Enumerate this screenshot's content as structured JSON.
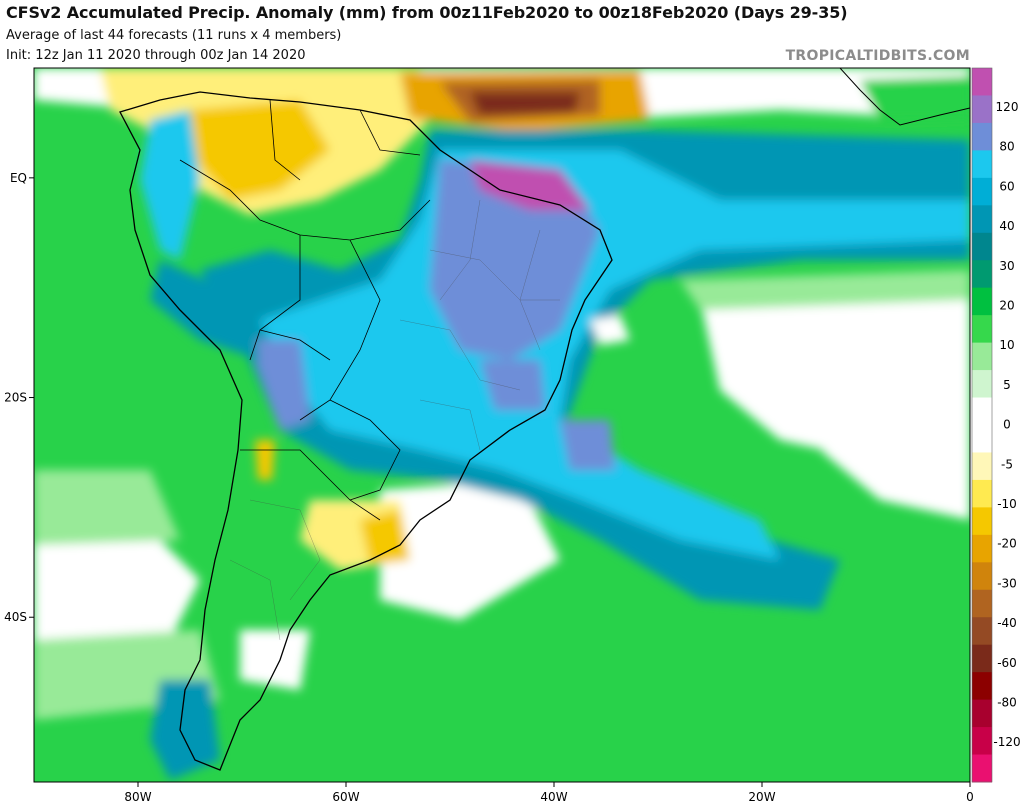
{
  "header": {
    "title": "CFSv2 Accumulated Precip. Anomaly (mm) from 00z11Feb2020 to 00z18Feb2020 (Days 29-35)",
    "subtitle": "Average of last 44 forecasts (11 runs x 4 members)",
    "init": "Init: 12z Jan 11 2020 through 00z Jan 14 2020",
    "brand": "TROPICALTIDBITS.COM"
  },
  "axes": {
    "lon_labels": [
      "80W",
      "60W",
      "40W",
      "20W",
      "0"
    ],
    "lon_values": [
      -80,
      -60,
      -40,
      -20,
      0
    ],
    "lat_labels": [
      "EQ",
      "20S",
      "40S"
    ],
    "lat_values": [
      0,
      -20,
      -40
    ],
    "lon_range": [
      -90,
      0
    ],
    "lat_range": [
      -55,
      10
    ]
  },
  "colorbar": {
    "labels": [
      "120",
      "80",
      "60",
      "40",
      "30",
      "20",
      "10",
      "5",
      "0",
      "-5",
      "-10",
      "-20",
      "-30",
      "-40",
      "-60",
      "-80",
      "-120"
    ],
    "colors": [
      "#c050b0",
      "#9a72c8",
      "#6e8ed8",
      "#1cc8ee",
      "#00aed6",
      "#0096b4",
      "#00868e",
      "#009a70",
      "#00c040",
      "#36d84c",
      "#98ea98",
      "#cff5cf",
      "#ffffff",
      "#ffffff",
      "#fff7b8",
      "#ffea50",
      "#f5c800",
      "#e8a400",
      "#d0840c",
      "#b06420",
      "#944a24",
      "#7a2a1a",
      "#8c0000",
      "#a8002e",
      "#c80048",
      "#ea1070"
    ]
  },
  "chart_data": {
    "type": "heatmap",
    "title": "CFSv2 Accumulated Precip. Anomaly (mm) from 00z11Feb2020 to 00z18Feb2020 (Days 29-35)",
    "xlim": [
      -90,
      0
    ],
    "ylim": [
      -55,
      10
    ],
    "units": "mm",
    "color_levels": [
      -120,
      -80,
      -60,
      -40,
      -30,
      -20,
      -10,
      -5,
      0,
      5,
      10,
      20,
      30,
      40,
      60,
      80,
      120
    ]
  }
}
